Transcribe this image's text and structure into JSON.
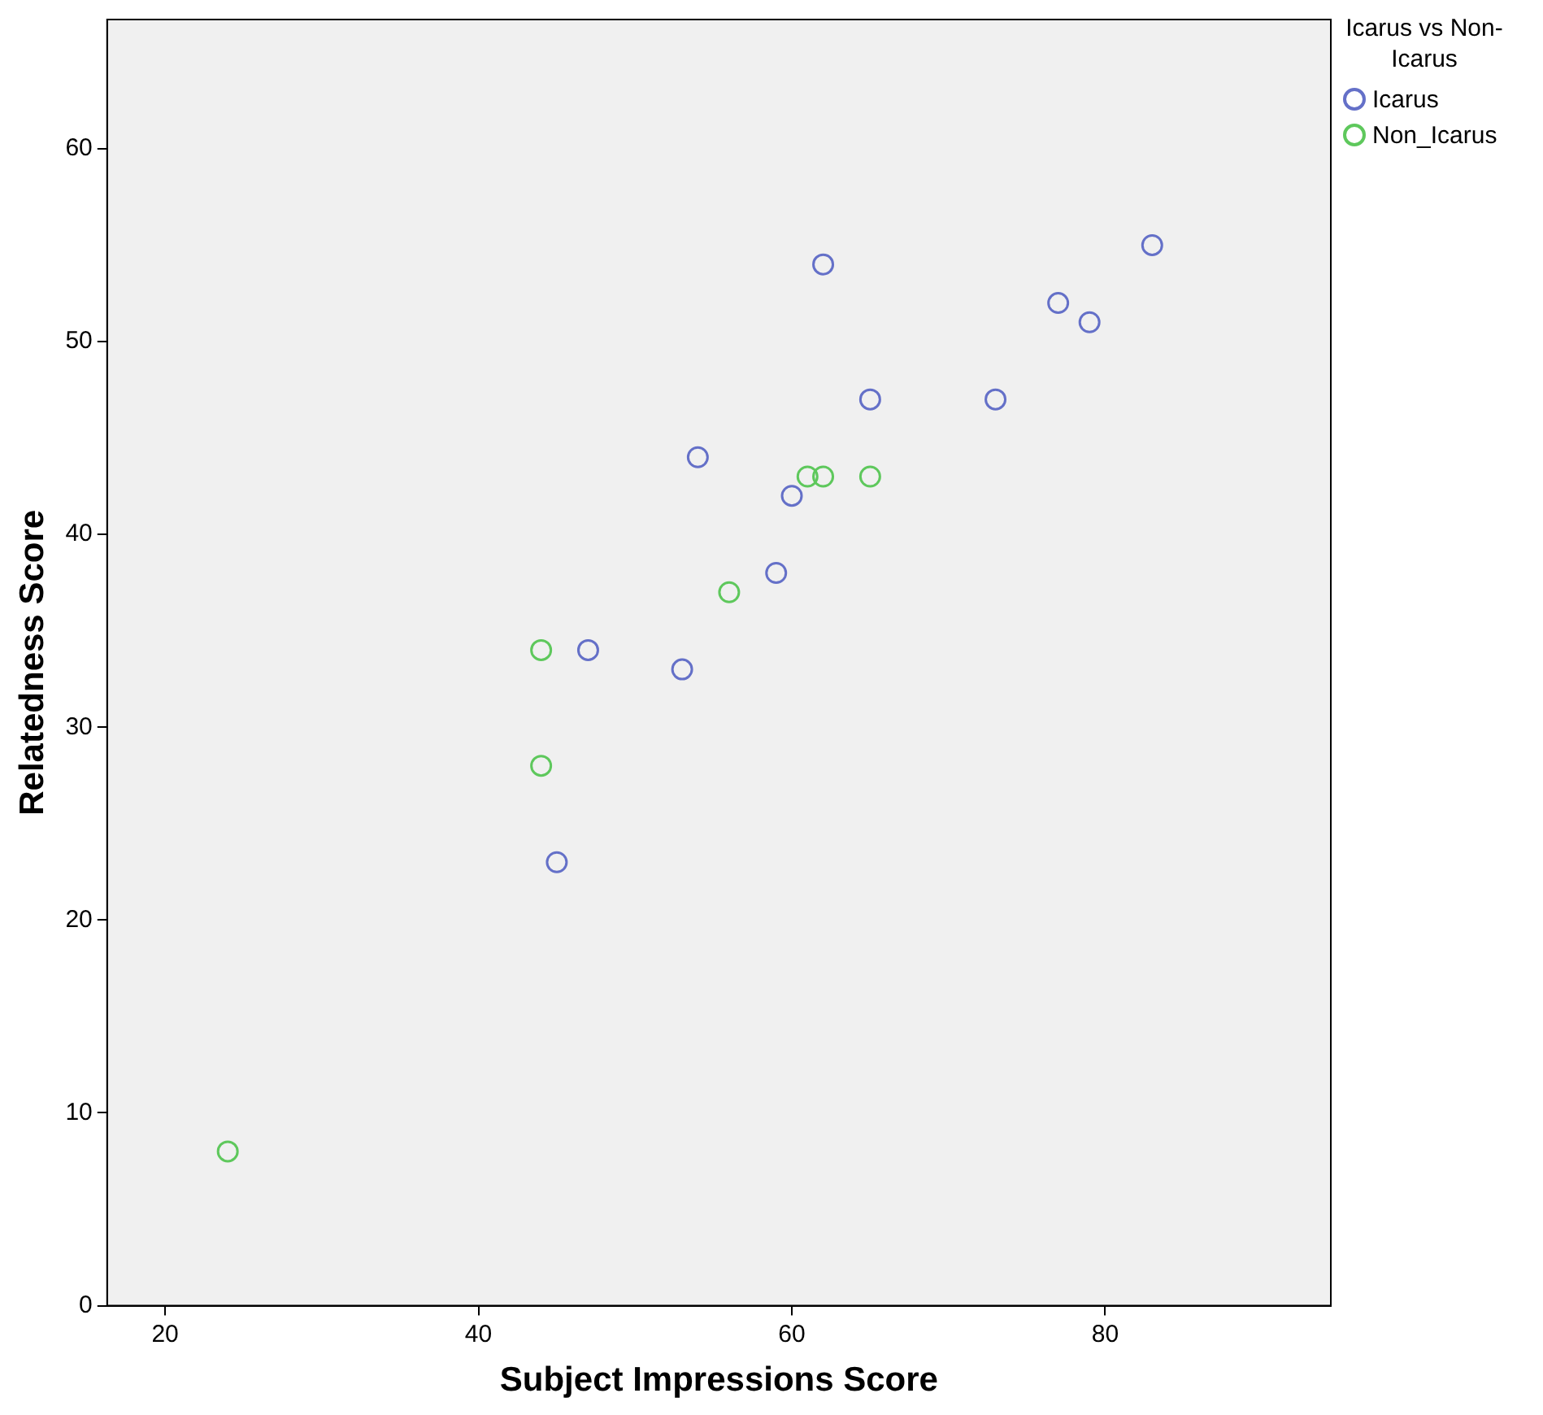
{
  "chart_data": {
    "type": "scatter",
    "xlabel": "Subject Impressions Score",
    "ylabel": "Relatedness Score",
    "legend_title": "Icarus vs Non-Icarus",
    "legend": "top right",
    "marker": "circle",
    "grid": false,
    "xlim": [
      16.3,
      94.4
    ],
    "xticks": [
      20,
      40,
      60,
      80
    ],
    "ylim": [
      0,
      66.7
    ],
    "yticks": [
      0,
      10,
      20,
      30,
      40,
      50,
      60
    ],
    "series": [
      {
        "name": "Icarus",
        "color": "#6470c8",
        "x": [
          83,
          62,
          77,
          79,
          65,
          73,
          54,
          60,
          59,
          47,
          53,
          45
        ],
        "values": [
          55,
          54,
          52,
          51,
          47,
          47,
          44,
          42,
          38,
          34,
          33,
          23
        ]
      },
      {
        "name": "Non_Icarus",
        "color": "#5ec85c",
        "x": [
          61,
          62,
          65,
          56,
          44,
          44,
          24
        ],
        "values": [
          43,
          43,
          43,
          37,
          34,
          28,
          8
        ]
      }
    ]
  }
}
